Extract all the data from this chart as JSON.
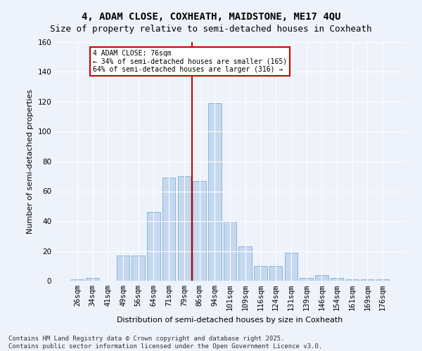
{
  "title1": "4, ADAM CLOSE, COXHEATH, MAIDSTONE, ME17 4QU",
  "title2": "Size of property relative to semi-detached houses in Coxheath",
  "xlabel": "Distribution of semi-detached houses by size in Coxheath",
  "ylabel": "Number of semi-detached properties",
  "categories": [
    "26sqm",
    "34sqm",
    "41sqm",
    "49sqm",
    "56sqm",
    "64sqm",
    "71sqm",
    "79sqm",
    "86sqm",
    "94sqm",
    "101sqm",
    "109sqm",
    "116sqm",
    "124sqm",
    "131sqm",
    "139sqm",
    "146sqm",
    "154sqm",
    "161sqm",
    "169sqm",
    "176sqm"
  ],
  "values": [
    1,
    2,
    0,
    17,
    17,
    46,
    69,
    70,
    67,
    119,
    40,
    23,
    10,
    10,
    19,
    2,
    4,
    2,
    1,
    1,
    1
  ],
  "bar_color": "#c5d8f0",
  "bar_edge_color": "#7aafd4",
  "vline_x": 7.5,
  "annotation_text": "4 ADAM CLOSE: 76sqm\n← 34% of semi-detached houses are smaller (165)\n64% of semi-detached houses are larger (316) →",
  "annotation_box_facecolor": "#ffffff",
  "annotation_border_color": "#cc0000",
  "vline_color": "#cc0000",
  "background_color": "#eef2fa",
  "grid_color": "#ffffff",
  "footer": "Contains HM Land Registry data © Crown copyright and database right 2025.\nContains public sector information licensed under the Open Government Licence v3.0.",
  "ylim": [
    0,
    160
  ],
  "yticks": [
    0,
    20,
    40,
    60,
    80,
    100,
    120,
    140,
    160
  ],
  "title1_fontsize": 10,
  "title2_fontsize": 9,
  "axis_label_fontsize": 8,
  "tick_fontsize": 7.5,
  "footer_fontsize": 6.5
}
